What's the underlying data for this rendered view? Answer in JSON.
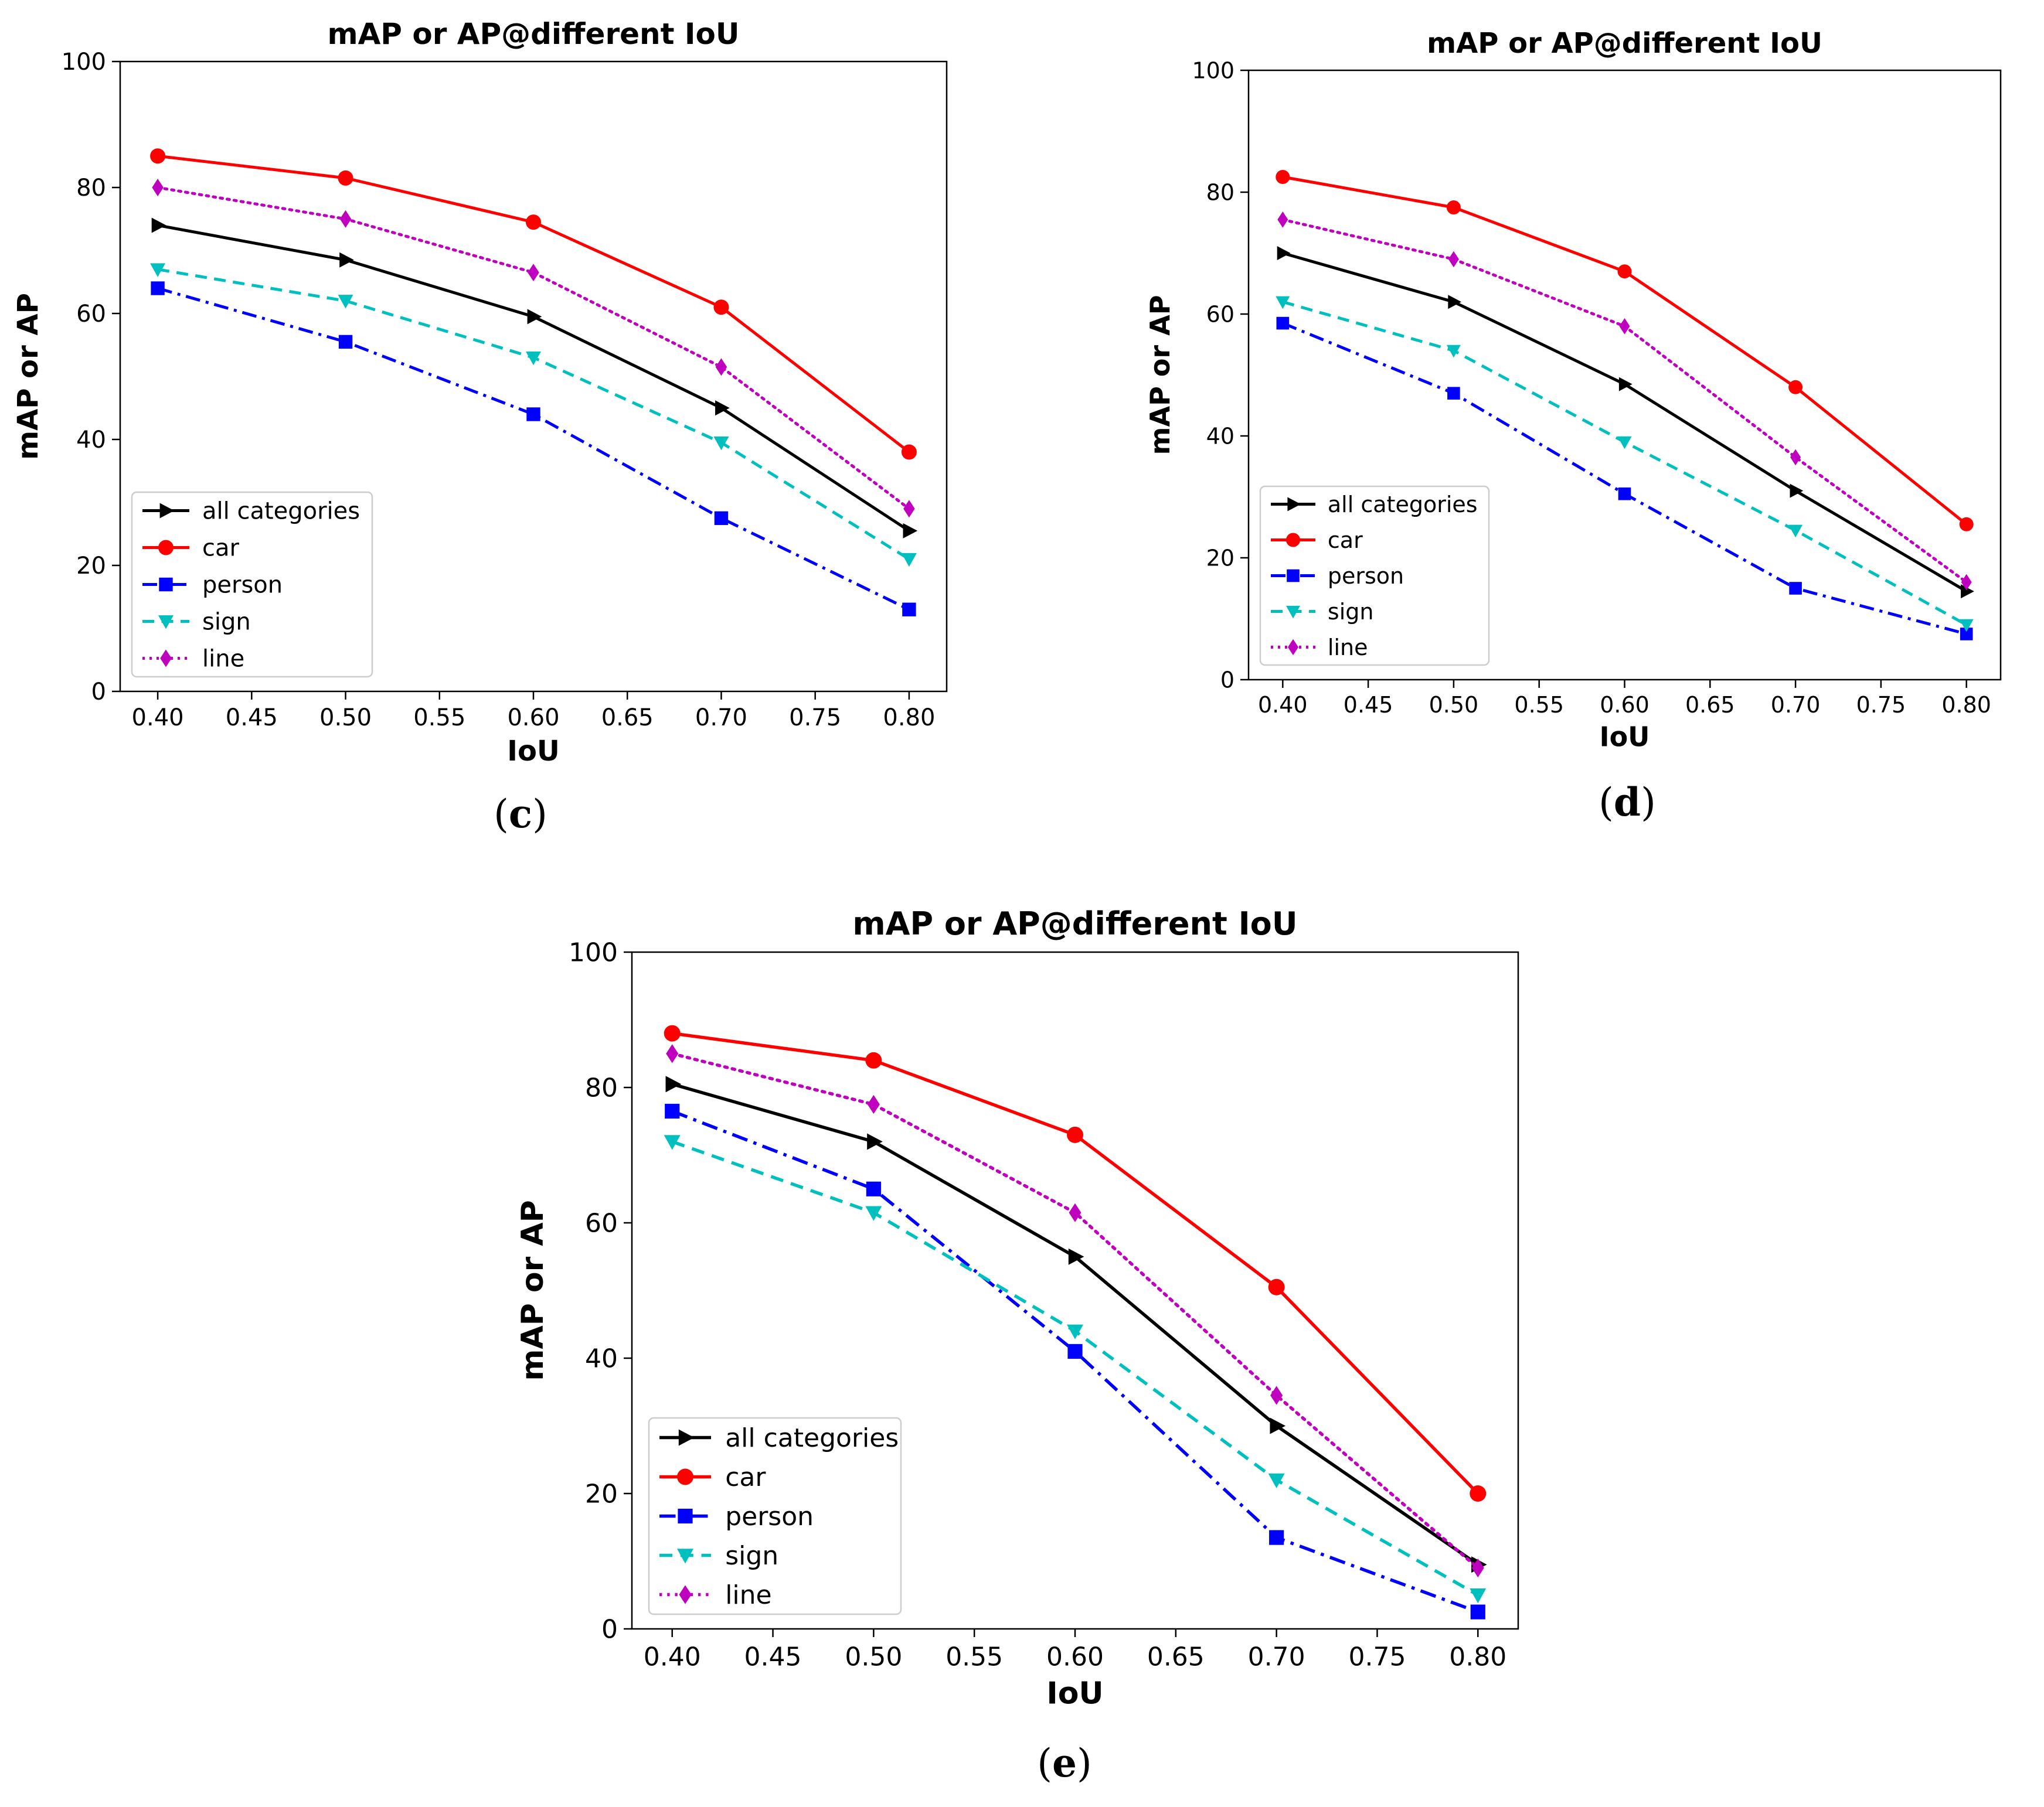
{
  "chart_data": [
    {
      "id": "c",
      "type": "line",
      "title": "mAP or AP@different IoU",
      "xlabel": "IoU",
      "ylabel": "mAP or AP",
      "caption_open": "(",
      "caption_letter": "c",
      "caption_close": ")",
      "xlim": [
        0.38,
        0.82
      ],
      "ylim": [
        0,
        100
      ],
      "xticks": [
        "0.40",
        "0.45",
        "0.50",
        "0.55",
        "0.60",
        "0.65",
        "0.70",
        "0.75",
        "0.80"
      ],
      "xtick_values": [
        0.4,
        0.45,
        0.5,
        0.55,
        0.6,
        0.65,
        0.7,
        0.75,
        0.8
      ],
      "yticks": [
        "0",
        "20",
        "40",
        "60",
        "80",
        "100"
      ],
      "ytick_values": [
        0,
        20,
        40,
        60,
        80,
        100
      ],
      "legend_loc": "lower-left",
      "x": [
        0.4,
        0.5,
        0.6,
        0.7,
        0.8
      ],
      "series": [
        {
          "name": "all categories",
          "values": [
            74,
            68.5,
            59.5,
            45,
            25.5
          ],
          "color": "#000000",
          "marker": "triangle-right",
          "linestyle": "solid"
        },
        {
          "name": "car",
          "values": [
            85,
            81.5,
            74.5,
            61,
            38
          ],
          "color": "#ff0000",
          "marker": "circle",
          "linestyle": "solid"
        },
        {
          "name": "person",
          "values": [
            64,
            55.5,
            44,
            27.5,
            13
          ],
          "color": "#0000ff",
          "marker": "square",
          "linestyle": "dashdot"
        },
        {
          "name": "sign",
          "values": [
            67,
            62,
            53,
            39.5,
            21
          ],
          "color": "#00bfbf",
          "marker": "triangle-down",
          "linestyle": "dashed"
        },
        {
          "name": "line",
          "values": [
            80,
            75,
            66.5,
            51.5,
            29
          ],
          "color": "#bf00bf",
          "marker": "diamond",
          "linestyle": "dotted"
        }
      ]
    },
    {
      "id": "d",
      "type": "line",
      "title": "mAP or AP@different IoU",
      "xlabel": "IoU",
      "ylabel": "mAP or AP",
      "caption_open": "(",
      "caption_letter": "d",
      "caption_close": ")",
      "xlim": [
        0.38,
        0.82
      ],
      "ylim": [
        0,
        100
      ],
      "xticks": [
        "0.40",
        "0.45",
        "0.50",
        "0.55",
        "0.60",
        "0.65",
        "0.70",
        "0.75",
        "0.80"
      ],
      "xtick_values": [
        0.4,
        0.45,
        0.5,
        0.55,
        0.6,
        0.65,
        0.7,
        0.75,
        0.8
      ],
      "yticks": [
        "0",
        "20",
        "40",
        "60",
        "80",
        "100"
      ],
      "ytick_values": [
        0,
        20,
        40,
        60,
        80,
        100
      ],
      "legend_loc": "lower-left",
      "x": [
        0.4,
        0.5,
        0.6,
        0.7,
        0.8
      ],
      "series": [
        {
          "name": "all categories",
          "values": [
            70,
            62,
            48.5,
            31,
            14.5
          ],
          "color": "#000000",
          "marker": "triangle-right",
          "linestyle": "solid"
        },
        {
          "name": "car",
          "values": [
            82.5,
            77.5,
            67,
            48,
            25.5
          ],
          "color": "#ff0000",
          "marker": "circle",
          "linestyle": "solid"
        },
        {
          "name": "person",
          "values": [
            58.5,
            47,
            30.5,
            15,
            7.5
          ],
          "color": "#0000ff",
          "marker": "square",
          "linestyle": "dashdot"
        },
        {
          "name": "sign",
          "values": [
            62,
            54,
            39,
            24.5,
            9
          ],
          "color": "#00bfbf",
          "marker": "triangle-down",
          "linestyle": "dashed"
        },
        {
          "name": "line",
          "values": [
            75.5,
            69,
            58,
            36.5,
            16
          ],
          "color": "#bf00bf",
          "marker": "diamond",
          "linestyle": "dotted"
        }
      ]
    },
    {
      "id": "e",
      "type": "line",
      "title": "mAP or AP@different IoU",
      "xlabel": "IoU",
      "ylabel": "mAP or AP",
      "caption_open": "(",
      "caption_letter": "e",
      "caption_close": ")",
      "xlim": [
        0.38,
        0.82
      ],
      "ylim": [
        0,
        100
      ],
      "xticks": [
        "0.40",
        "0.45",
        "0.50",
        "0.55",
        "0.60",
        "0.65",
        "0.70",
        "0.75",
        "0.80"
      ],
      "xtick_values": [
        0.4,
        0.45,
        0.5,
        0.55,
        0.6,
        0.65,
        0.7,
        0.75,
        0.8
      ],
      "yticks": [
        "0",
        "20",
        "40",
        "60",
        "80",
        "100"
      ],
      "ytick_values": [
        0,
        20,
        40,
        60,
        80,
        100
      ],
      "legend_loc": "lower-left",
      "x": [
        0.4,
        0.5,
        0.6,
        0.7,
        0.8
      ],
      "series": [
        {
          "name": "all categories",
          "values": [
            80.5,
            72,
            55,
            30,
            9.5
          ],
          "color": "#000000",
          "marker": "triangle-right",
          "linestyle": "solid"
        },
        {
          "name": "car",
          "values": [
            88,
            84,
            73,
            50.5,
            20
          ],
          "color": "#ff0000",
          "marker": "circle",
          "linestyle": "solid"
        },
        {
          "name": "person",
          "values": [
            76.5,
            65,
            41,
            13.5,
            2.5
          ],
          "color": "#0000ff",
          "marker": "square",
          "linestyle": "dashdot"
        },
        {
          "name": "sign",
          "values": [
            72,
            61.5,
            44,
            22,
            5
          ],
          "color": "#00bfbf",
          "marker": "triangle-down",
          "linestyle": "dashed"
        },
        {
          "name": "line",
          "values": [
            85,
            77.5,
            61.5,
            34.5,
            9
          ],
          "color": "#bf00bf",
          "marker": "diamond",
          "linestyle": "dotted"
        }
      ]
    }
  ]
}
